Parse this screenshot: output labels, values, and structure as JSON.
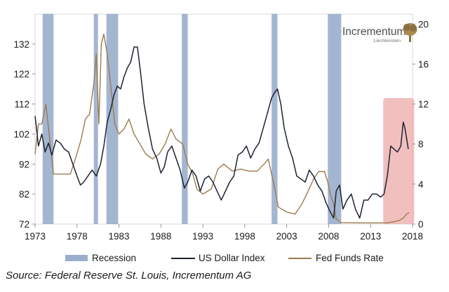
{
  "chart_data": {
    "type": "line",
    "title": "",
    "xlim": [
      1973,
      2018
    ],
    "ylim_left": [
      72,
      142
    ],
    "ylim_right": [
      0,
      21
    ],
    "x_ticks": [
      "1973",
      "1978",
      "1983",
      "1988",
      "1993",
      "1998",
      "2003",
      "2008",
      "2013",
      "2018"
    ],
    "y_left_ticks": [
      "72",
      "82",
      "92",
      "102",
      "112",
      "122",
      "132"
    ],
    "y_right_ticks": [
      "0",
      "4",
      "8",
      "12",
      "16",
      "20"
    ],
    "legend_position": "bottom",
    "legend": [
      "Recession",
      "US Dollar Index",
      "Fed Funds Rate"
    ],
    "colors": {
      "recession": "#9aadcc",
      "dollar": "#1c2331",
      "fed": "#9c7b4f",
      "highlight": "#eeaaaa",
      "brand": "#8a7040"
    },
    "recessions": [
      [
        1973.9,
        1975.2
      ],
      [
        1980.0,
        1980.5
      ],
      [
        1981.5,
        1982.9
      ],
      [
        1990.5,
        1991.2
      ],
      [
        2001.2,
        2001.9
      ],
      [
        2007.9,
        2009.5
      ]
    ],
    "highlight_range": {
      "x": [
        2014.5,
        2018.2
      ],
      "y": [
        72,
        114
      ]
    },
    "series": [
      {
        "name": "US Dollar Index",
        "axis": "left",
        "points": [
          [
            1973.0,
            108
          ],
          [
            1973.4,
            98
          ],
          [
            1973.8,
            102
          ],
          [
            1974.2,
            96
          ],
          [
            1974.6,
            99
          ],
          [
            1975.0,
            95
          ],
          [
            1975.5,
            100
          ],
          [
            1976.0,
            99
          ],
          [
            1976.5,
            97
          ],
          [
            1977.0,
            96
          ],
          [
            1977.5,
            92
          ],
          [
            1978.0,
            88
          ],
          [
            1978.4,
            85
          ],
          [
            1978.8,
            86
          ],
          [
            1979.3,
            88
          ],
          [
            1979.8,
            90
          ],
          [
            1980.3,
            88
          ],
          [
            1980.8,
            92
          ],
          [
            1981.2,
            98
          ],
          [
            1981.6,
            106
          ],
          [
            1982.0,
            110
          ],
          [
            1982.4,
            115
          ],
          [
            1982.8,
            118
          ],
          [
            1983.2,
            117
          ],
          [
            1983.6,
            121
          ],
          [
            1984.0,
            124
          ],
          [
            1984.4,
            126
          ],
          [
            1984.8,
            131
          ],
          [
            1985.2,
            131
          ],
          [
            1985.6,
            122
          ],
          [
            1986.0,
            112
          ],
          [
            1986.5,
            104
          ],
          [
            1987.0,
            97
          ],
          [
            1987.5,
            94
          ],
          [
            1988.0,
            89
          ],
          [
            1988.4,
            91
          ],
          [
            1988.8,
            96
          ],
          [
            1989.3,
            98
          ],
          [
            1989.8,
            94
          ],
          [
            1990.3,
            90
          ],
          [
            1990.8,
            84
          ],
          [
            1991.2,
            86
          ],
          [
            1991.7,
            90
          ],
          [
            1992.2,
            88
          ],
          [
            1992.7,
            83
          ],
          [
            1993.2,
            87
          ],
          [
            1993.7,
            88
          ],
          [
            1994.2,
            86
          ],
          [
            1994.7,
            83
          ],
          [
            1995.2,
            80
          ],
          [
            1995.7,
            83
          ],
          [
            1996.2,
            86
          ],
          [
            1996.7,
            88
          ],
          [
            1997.2,
            95
          ],
          [
            1997.7,
            96
          ],
          [
            1998.2,
            98
          ],
          [
            1998.7,
            94
          ],
          [
            1999.2,
            97
          ],
          [
            1999.7,
            99
          ],
          [
            2000.2,
            104
          ],
          [
            2000.7,
            109
          ],
          [
            2001.2,
            114
          ],
          [
            2001.6,
            116
          ],
          [
            2001.9,
            117
          ],
          [
            2002.3,
            112
          ],
          [
            2002.7,
            104
          ],
          [
            2003.2,
            98
          ],
          [
            2003.7,
            94
          ],
          [
            2004.2,
            88
          ],
          [
            2004.7,
            87
          ],
          [
            2005.2,
            86
          ],
          [
            2005.7,
            90
          ],
          [
            2006.2,
            88
          ],
          [
            2006.7,
            85
          ],
          [
            2007.2,
            83
          ],
          [
            2007.7,
            79
          ],
          [
            2008.2,
            76
          ],
          [
            2008.6,
            74
          ],
          [
            2008.9,
            83
          ],
          [
            2009.3,
            85
          ],
          [
            2009.7,
            77
          ],
          [
            2010.2,
            80
          ],
          [
            2010.7,
            82
          ],
          [
            2011.2,
            77
          ],
          [
            2011.7,
            74
          ],
          [
            2012.2,
            80
          ],
          [
            2012.7,
            80
          ],
          [
            2013.2,
            82
          ],
          [
            2013.7,
            82
          ],
          [
            2014.2,
            81
          ],
          [
            2014.6,
            82
          ],
          [
            2015.0,
            88
          ],
          [
            2015.4,
            98
          ],
          [
            2015.8,
            97
          ],
          [
            2016.2,
            96
          ],
          [
            2016.6,
            98
          ],
          [
            2016.9,
            106
          ],
          [
            2017.1,
            104
          ],
          [
            2017.5,
            97
          ]
        ]
      },
      {
        "name": "Fed Funds Rate",
        "axis": "right",
        "points": [
          [
            1973.0,
            7
          ],
          [
            1973.4,
            10
          ],
          [
            1973.8,
            10
          ],
          [
            1974.3,
            12
          ],
          [
            1974.8,
            8
          ],
          [
            1975.2,
            5
          ],
          [
            1975.8,
            5
          ],
          [
            1976.5,
            5
          ],
          [
            1977.2,
            5
          ],
          [
            1977.8,
            6.5
          ],
          [
            1978.5,
            8.5
          ],
          [
            1979.0,
            10.5
          ],
          [
            1979.5,
            11
          ],
          [
            1980.0,
            14
          ],
          [
            1980.3,
            17
          ],
          [
            1980.6,
            10
          ],
          [
            1980.9,
            18
          ],
          [
            1981.2,
            19
          ],
          [
            1981.6,
            17
          ],
          [
            1982.0,
            14
          ],
          [
            1982.5,
            10
          ],
          [
            1983.0,
            9
          ],
          [
            1983.6,
            9.5
          ],
          [
            1984.2,
            10.5
          ],
          [
            1984.8,
            9
          ],
          [
            1985.5,
            8
          ],
          [
            1986.2,
            7
          ],
          [
            1987.0,
            6.5
          ],
          [
            1987.8,
            7
          ],
          [
            1988.5,
            8
          ],
          [
            1989.2,
            9.5
          ],
          [
            1989.8,
            8.5
          ],
          [
            1990.6,
            8
          ],
          [
            1991.2,
            6
          ],
          [
            1991.8,
            5
          ],
          [
            1992.3,
            3.5
          ],
          [
            1993.0,
            3
          ],
          [
            1994.0,
            3.5
          ],
          [
            1994.8,
            5.5
          ],
          [
            1995.5,
            6
          ],
          [
            1996.5,
            5.3
          ],
          [
            1997.5,
            5.5
          ],
          [
            1998.5,
            5.3
          ],
          [
            1999.5,
            5.3
          ],
          [
            2000.3,
            6
          ],
          [
            2000.8,
            6.5
          ],
          [
            2001.2,
            5
          ],
          [
            2001.6,
            3.5
          ],
          [
            2002.0,
            1.7
          ],
          [
            2003.0,
            1.2
          ],
          [
            2004.0,
            1.0
          ],
          [
            2004.8,
            2
          ],
          [
            2005.5,
            3.2
          ],
          [
            2006.2,
            4.5
          ],
          [
            2006.8,
            5.25
          ],
          [
            2007.5,
            5.25
          ],
          [
            2007.9,
            4.2
          ],
          [
            2008.2,
            3
          ],
          [
            2008.6,
            2
          ],
          [
            2008.9,
            0.5
          ],
          [
            2009.5,
            0.15
          ],
          [
            2012.0,
            0.12
          ],
          [
            2015.0,
            0.12
          ],
          [
            2015.9,
            0.25
          ],
          [
            2016.5,
            0.4
          ],
          [
            2016.9,
            0.6
          ],
          [
            2017.3,
            1.0
          ],
          [
            2017.6,
            1.15
          ]
        ]
      }
    ]
  },
  "legend": {
    "recession_label": "Recession",
    "dollar_label": "US Dollar Index",
    "fed_label": "Fed Funds Rate"
  },
  "branding": {
    "title": "Incrementum",
    "subtitle": "Liechtenstein"
  },
  "source_note": "Source: Federal Reserve St. Louis, Incrementum AG"
}
